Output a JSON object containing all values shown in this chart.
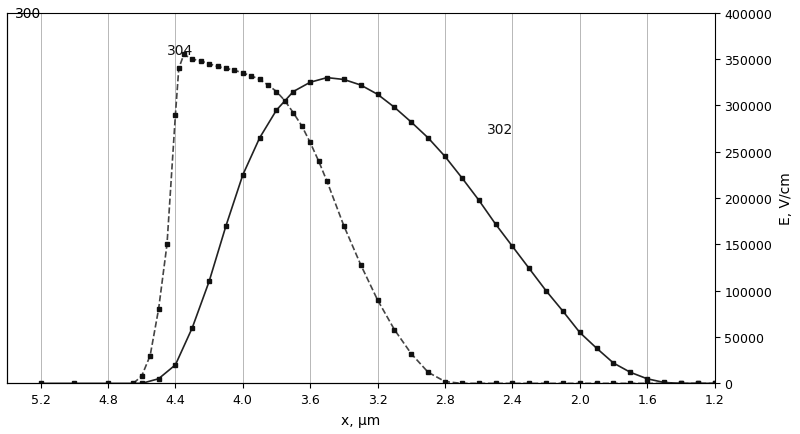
{
  "title": "",
  "xlabel": "x, μm",
  "ylabel": "E, V/cm",
  "xlim": [
    1.2,
    5.4
  ],
  "ylim": [
    0,
    400000
  ],
  "xticks": [
    5.2,
    4.8,
    4.4,
    4.0,
    3.6,
    3.2,
    2.8,
    2.4,
    2.0,
    1.6,
    1.2
  ],
  "yticks": [
    0,
    50000,
    100000,
    150000,
    200000,
    250000,
    300000,
    350000,
    400000
  ],
  "label_302": "302",
  "label_304": "304",
  "annotation_300": "300",
  "curve302_color": "#222222",
  "curve304_color": "#444444",
  "background_color": "#ffffff",
  "grid_color": "#888888",
  "curve302_x": [
    5.2,
    5.0,
    4.8,
    4.6,
    4.5,
    4.4,
    4.3,
    4.2,
    4.1,
    4.0,
    3.9,
    3.8,
    3.7,
    3.6,
    3.5,
    3.4,
    3.3,
    3.2,
    3.1,
    3.0,
    2.9,
    2.8,
    2.7,
    2.6,
    2.5,
    2.4,
    2.3,
    2.2,
    2.1,
    2.0,
    1.9,
    1.8,
    1.7,
    1.6,
    1.5,
    1.4,
    1.3,
    1.2
  ],
  "curve302_y": [
    0,
    0,
    0,
    0,
    5000,
    20000,
    60000,
    110000,
    170000,
    225000,
    265000,
    295000,
    315000,
    325000,
    330000,
    328000,
    322000,
    312000,
    298000,
    282000,
    265000,
    245000,
    222000,
    198000,
    172000,
    148000,
    124000,
    100000,
    78000,
    55000,
    38000,
    22000,
    12000,
    5000,
    1000,
    0,
    0,
    0
  ],
  "curve304_x": [
    4.65,
    4.6,
    4.55,
    4.5,
    4.45,
    4.4,
    4.38,
    4.35,
    4.3,
    4.25,
    4.2,
    4.15,
    4.1,
    4.05,
    4.0,
    3.95,
    3.9,
    3.85,
    3.8,
    3.75,
    3.7,
    3.65,
    3.6,
    3.55,
    3.5,
    3.4,
    3.3,
    3.2,
    3.1,
    3.0,
    2.9,
    2.8,
    2.7,
    2.6,
    2.5,
    2.4,
    2.3,
    2.2,
    2.1,
    2.0,
    1.9,
    1.8,
    1.7,
    1.6,
    1.5,
    1.4,
    1.3,
    1.2
  ],
  "curve304_y": [
    0,
    8000,
    30000,
    80000,
    150000,
    290000,
    340000,
    355000,
    350000,
    348000,
    345000,
    342000,
    340000,
    338000,
    335000,
    332000,
    328000,
    322000,
    315000,
    305000,
    292000,
    278000,
    260000,
    240000,
    218000,
    170000,
    128000,
    90000,
    58000,
    32000,
    12000,
    2000,
    0,
    0,
    0,
    0,
    0,
    0,
    0,
    0,
    0,
    0,
    0,
    0,
    0,
    0,
    0,
    0
  ]
}
